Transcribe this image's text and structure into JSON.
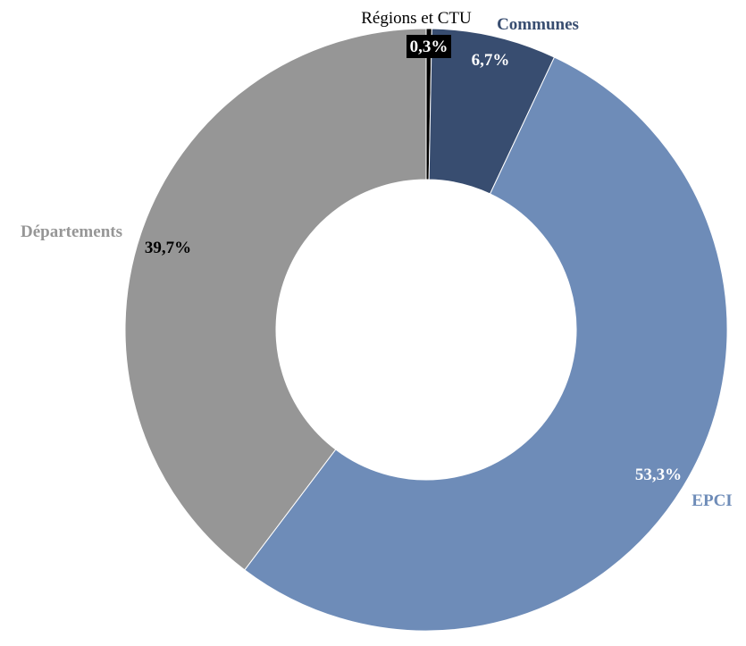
{
  "chart_data": {
    "type": "pie",
    "variant": "donut",
    "title": "",
    "categories": [
      "Régions et CTU",
      "Communes",
      "EPCI",
      "Départements"
    ],
    "values": [
      0.3,
      6.7,
      53.3,
      39.7
    ],
    "value_labels": [
      "0,3%",
      "6,7%",
      "53,3%",
      "39,7%"
    ],
    "colors": [
      "#000000",
      "#384d70",
      "#6e8cb8",
      "#969696"
    ],
    "label_colors": [
      "#000000",
      "#384d70",
      "#6e8cb8",
      "#969696"
    ],
    "value_label_colors": [
      "#ffffff",
      "#ffffff",
      "#ffffff",
      "#000000"
    ],
    "start_angle_deg": 0,
    "direction": "clockwise",
    "legend": "none"
  }
}
